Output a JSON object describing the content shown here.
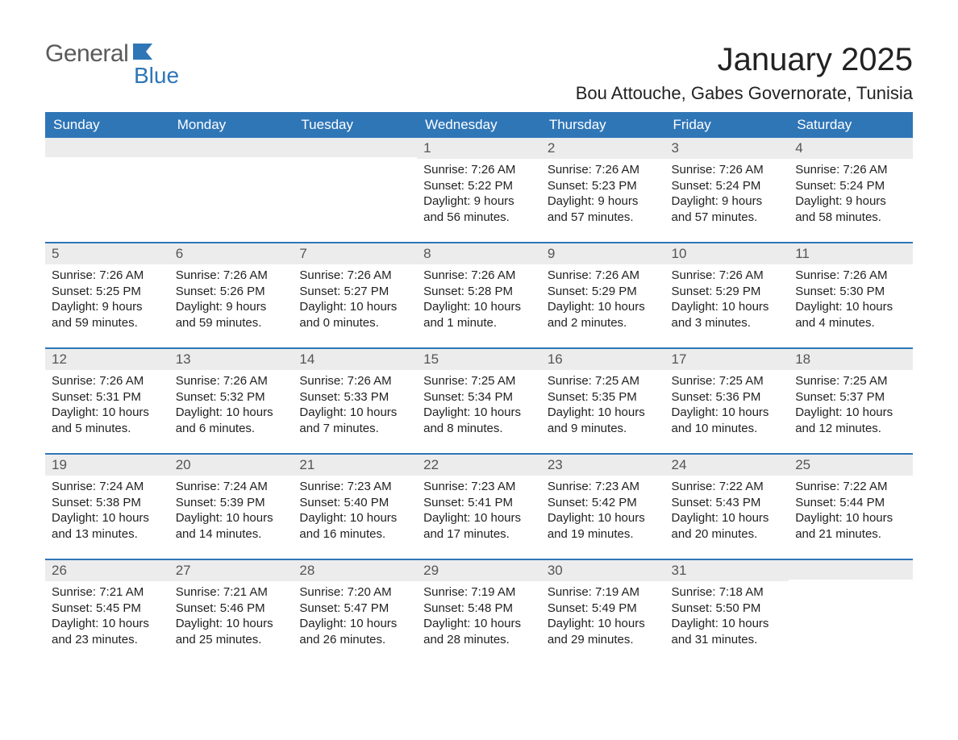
{
  "logo": {
    "word1": "General",
    "word2": "Blue"
  },
  "title": {
    "month": "January 2025",
    "location": "Bou Attouche, Gabes Governorate, Tunisia"
  },
  "columns": [
    "Sunday",
    "Monday",
    "Tuesday",
    "Wednesday",
    "Thursday",
    "Friday",
    "Saturday"
  ],
  "colors": {
    "header_bg": "#2f76b7",
    "header_text": "#ffffff",
    "daynum_bg": "#ececec",
    "daynum_text": "#555555",
    "body_text": "#222222",
    "divider": "#2f76b7",
    "page_bg": "#ffffff"
  },
  "fonts": {
    "title_pt": 40,
    "location_pt": 22,
    "header_pt": 17,
    "body_pt": 15,
    "daynum_pt": 17
  },
  "labels": {
    "sunrise": "Sunrise:",
    "sunset": "Sunset:",
    "daylight": "Daylight:"
  },
  "weeks": [
    [
      {
        "empty": true
      },
      {
        "empty": true
      },
      {
        "empty": true
      },
      {
        "n": "1",
        "sunrise": "7:26 AM",
        "sunset": "5:22 PM",
        "daylight": "9 hours and 56 minutes."
      },
      {
        "n": "2",
        "sunrise": "7:26 AM",
        "sunset": "5:23 PM",
        "daylight": "9 hours and 57 minutes."
      },
      {
        "n": "3",
        "sunrise": "7:26 AM",
        "sunset": "5:24 PM",
        "daylight": "9 hours and 57 minutes."
      },
      {
        "n": "4",
        "sunrise": "7:26 AM",
        "sunset": "5:24 PM",
        "daylight": "9 hours and 58 minutes."
      }
    ],
    [
      {
        "n": "5",
        "sunrise": "7:26 AM",
        "sunset": "5:25 PM",
        "daylight": "9 hours and 59 minutes."
      },
      {
        "n": "6",
        "sunrise": "7:26 AM",
        "sunset": "5:26 PM",
        "daylight": "9 hours and 59 minutes."
      },
      {
        "n": "7",
        "sunrise": "7:26 AM",
        "sunset": "5:27 PM",
        "daylight": "10 hours and 0 minutes."
      },
      {
        "n": "8",
        "sunrise": "7:26 AM",
        "sunset": "5:28 PM",
        "daylight": "10 hours and 1 minute."
      },
      {
        "n": "9",
        "sunrise": "7:26 AM",
        "sunset": "5:29 PM",
        "daylight": "10 hours and 2 minutes."
      },
      {
        "n": "10",
        "sunrise": "7:26 AM",
        "sunset": "5:29 PM",
        "daylight": "10 hours and 3 minutes."
      },
      {
        "n": "11",
        "sunrise": "7:26 AM",
        "sunset": "5:30 PM",
        "daylight": "10 hours and 4 minutes."
      }
    ],
    [
      {
        "n": "12",
        "sunrise": "7:26 AM",
        "sunset": "5:31 PM",
        "daylight": "10 hours and 5 minutes."
      },
      {
        "n": "13",
        "sunrise": "7:26 AM",
        "sunset": "5:32 PM",
        "daylight": "10 hours and 6 minutes."
      },
      {
        "n": "14",
        "sunrise": "7:26 AM",
        "sunset": "5:33 PM",
        "daylight": "10 hours and 7 minutes."
      },
      {
        "n": "15",
        "sunrise": "7:25 AM",
        "sunset": "5:34 PM",
        "daylight": "10 hours and 8 minutes."
      },
      {
        "n": "16",
        "sunrise": "7:25 AM",
        "sunset": "5:35 PM",
        "daylight": "10 hours and 9 minutes."
      },
      {
        "n": "17",
        "sunrise": "7:25 AM",
        "sunset": "5:36 PM",
        "daylight": "10 hours and 10 minutes."
      },
      {
        "n": "18",
        "sunrise": "7:25 AM",
        "sunset": "5:37 PM",
        "daylight": "10 hours and 12 minutes."
      }
    ],
    [
      {
        "n": "19",
        "sunrise": "7:24 AM",
        "sunset": "5:38 PM",
        "daylight": "10 hours and 13 minutes."
      },
      {
        "n": "20",
        "sunrise": "7:24 AM",
        "sunset": "5:39 PM",
        "daylight": "10 hours and 14 minutes."
      },
      {
        "n": "21",
        "sunrise": "7:23 AM",
        "sunset": "5:40 PM",
        "daylight": "10 hours and 16 minutes."
      },
      {
        "n": "22",
        "sunrise": "7:23 AM",
        "sunset": "5:41 PM",
        "daylight": "10 hours and 17 minutes."
      },
      {
        "n": "23",
        "sunrise": "7:23 AM",
        "sunset": "5:42 PM",
        "daylight": "10 hours and 19 minutes."
      },
      {
        "n": "24",
        "sunrise": "7:22 AM",
        "sunset": "5:43 PM",
        "daylight": "10 hours and 20 minutes."
      },
      {
        "n": "25",
        "sunrise": "7:22 AM",
        "sunset": "5:44 PM",
        "daylight": "10 hours and 21 minutes."
      }
    ],
    [
      {
        "n": "26",
        "sunrise": "7:21 AM",
        "sunset": "5:45 PM",
        "daylight": "10 hours and 23 minutes."
      },
      {
        "n": "27",
        "sunrise": "7:21 AM",
        "sunset": "5:46 PM",
        "daylight": "10 hours and 25 minutes."
      },
      {
        "n": "28",
        "sunrise": "7:20 AM",
        "sunset": "5:47 PM",
        "daylight": "10 hours and 26 minutes."
      },
      {
        "n": "29",
        "sunrise": "7:19 AM",
        "sunset": "5:48 PM",
        "daylight": "10 hours and 28 minutes."
      },
      {
        "n": "30",
        "sunrise": "7:19 AM",
        "sunset": "5:49 PM",
        "daylight": "10 hours and 29 minutes."
      },
      {
        "n": "31",
        "sunrise": "7:18 AM",
        "sunset": "5:50 PM",
        "daylight": "10 hours and 31 minutes."
      },
      {
        "empty": true
      }
    ]
  ]
}
